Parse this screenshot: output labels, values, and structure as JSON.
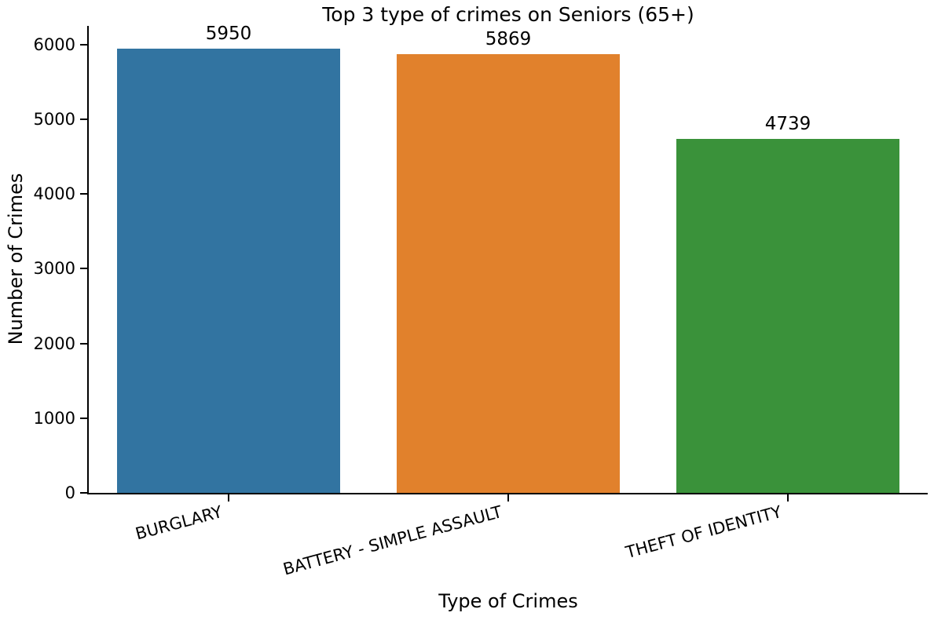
{
  "chart_data": {
    "type": "bar",
    "title": "Top 3 type of crimes on Seniors (65+)",
    "xlabel": "Type of Crimes",
    "ylabel": "Number of Crimes",
    "categories": [
      "BURGLARY",
      "BATTERY - SIMPLE ASSAULT",
      "THEFT OF IDENTITY"
    ],
    "values": [
      5950,
      5869,
      4739
    ],
    "bar_labels": [
      "5950",
      "5869",
      "4739"
    ],
    "bar_colors": [
      "#3274a1",
      "#e1812c",
      "#3a923a"
    ],
    "ylim": [
      0,
      6250
    ],
    "yticks": [
      0,
      1000,
      2000,
      3000,
      4000,
      5000,
      6000
    ],
    "xtick_rotation_deg": 15,
    "grid": false,
    "legend_position": "none",
    "axis_color": "#000000",
    "background_color": "#ffffff"
  }
}
